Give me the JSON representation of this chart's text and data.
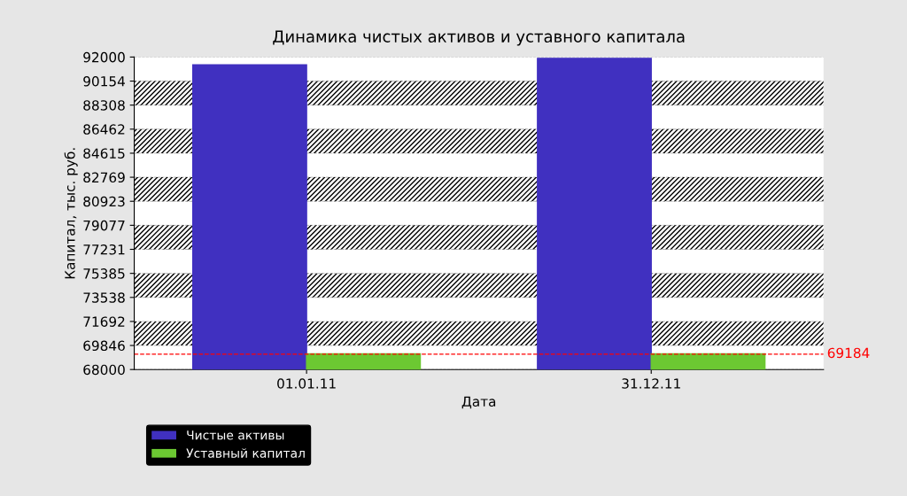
{
  "chart_data": {
    "type": "bar",
    "title": "Динамика чистых активов и уставного капитала",
    "xlabel": "Дата",
    "ylabel": "Капитал, тыс. руб.",
    "categories": [
      "01.01.11",
      "31.12.11"
    ],
    "series": [
      {
        "name": "Чистые активы",
        "color": "#4030c0",
        "values": [
          91400,
          91900
        ]
      },
      {
        "name": "Уставный капитал",
        "color": "#6cc832",
        "values": [
          69200,
          69200
        ]
      }
    ],
    "ylim": [
      68000,
      92000
    ],
    "yticks": [
      68000,
      69846,
      71692,
      73538,
      75385,
      77231,
      79077,
      80923,
      82769,
      84615,
      86462,
      88308,
      90154,
      92000
    ],
    "ref_lines": [
      {
        "axis": "y",
        "value": 69184,
        "label": "69184",
        "color": "#ff0000",
        "line_style": "dashed"
      }
    ],
    "bands": [
      {
        "axis": "y",
        "from": 69846,
        "to": 71692,
        "color": "#000000"
      },
      {
        "axis": "y",
        "from": 73538,
        "to": 75385,
        "color": "#000000"
      },
      {
        "axis": "y",
        "from": 77231,
        "to": 79077,
        "color": "#000000"
      },
      {
        "axis": "y",
        "from": 80923,
        "to": 82769,
        "color": "#000000"
      },
      {
        "axis": "y",
        "from": 84615,
        "to": 86462,
        "color": "#000000"
      },
      {
        "axis": "y",
        "from": 88308,
        "to": 90154,
        "color": "#000000"
      }
    ],
    "grid": "y",
    "legend": "bottom left"
  }
}
